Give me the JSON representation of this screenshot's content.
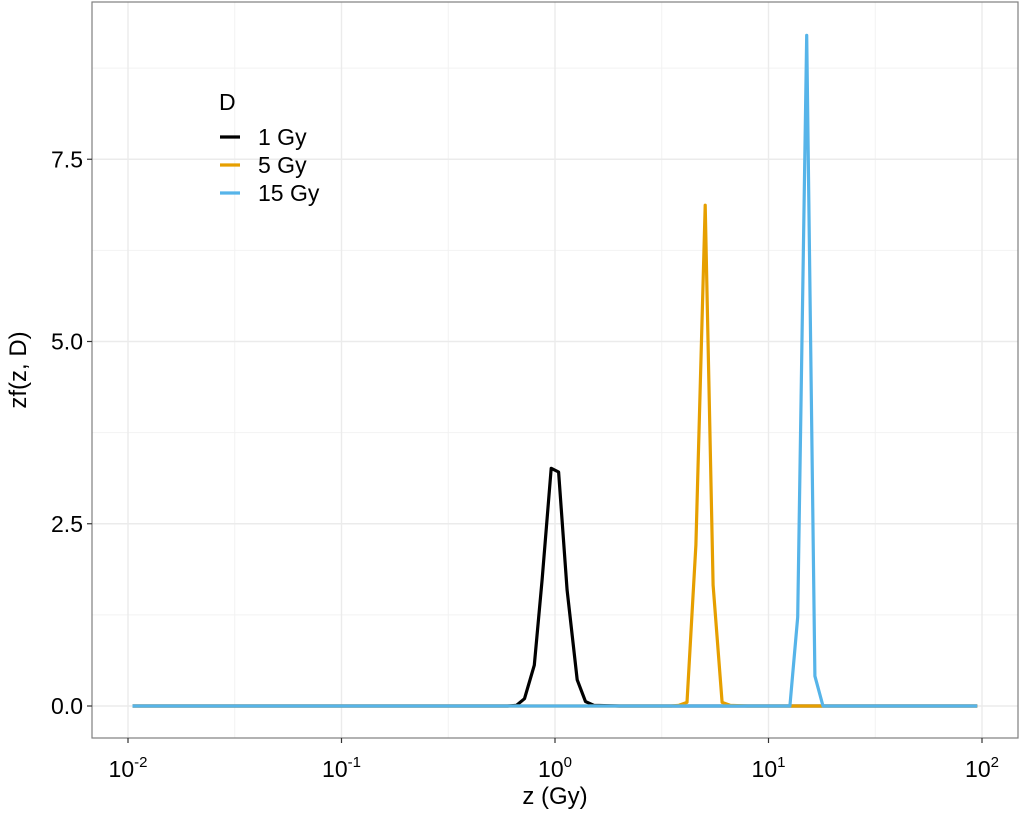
{
  "chart_data": {
    "type": "line",
    "title": "",
    "xlabel": "z (Gy)",
    "ylabel": "zf(z, D)",
    "x_scale": "log10",
    "xlim": [
      0.0085,
      130
    ],
    "ylim": [
      -0.45,
      9.62
    ],
    "grid": true,
    "x_ticks": [
      {
        "value": 0.01,
        "base": "10",
        "exp": "-2"
      },
      {
        "value": 0.1,
        "base": "10",
        "exp": "-1"
      },
      {
        "value": 1,
        "base": "10",
        "exp": "0"
      },
      {
        "value": 10,
        "base": "10",
        "exp": "1"
      },
      {
        "value": 100,
        "base": "10",
        "exp": "2"
      }
    ],
    "y_ticks": [
      {
        "value": 0.0,
        "label": "0.0"
      },
      {
        "value": 2.5,
        "label": "2.5"
      },
      {
        "value": 5.0,
        "label": "5.0"
      },
      {
        "value": 7.5,
        "label": "7.5"
      }
    ],
    "legend": {
      "title": "D",
      "position": "inside top-left"
    },
    "series": [
      {
        "name": "1 Gy",
        "color": "#000000",
        "x": [
          0.0105,
          0.6,
          0.66,
          0.72,
          0.8,
          0.87,
          0.96,
          1.04,
          1.14,
          1.27,
          1.39,
          1.52,
          2.0,
          95
        ],
        "y": [
          0,
          0,
          0.01,
          0.1,
          0.56,
          1.73,
          3.26,
          3.21,
          1.59,
          0.36,
          0.06,
          0.01,
          0,
          0
        ]
      },
      {
        "name": "5 Gy",
        "color": "#E69F00",
        "x": [
          0.0105,
          3.5,
          3.81,
          4.15,
          4.57,
          5.05,
          5.5,
          6.06,
          6.6,
          8.0,
          95
        ],
        "y": [
          0,
          0,
          0.01,
          0.05,
          2.21,
          6.87,
          1.66,
          0.05,
          0.01,
          0,
          0
        ]
      },
      {
        "name": "15 Gy",
        "color": "#56B4E9",
        "x": [
          0.0105,
          12.0,
          12.6,
          13.7,
          15.1,
          16.5,
          18.0,
          20.0,
          95
        ],
        "y": [
          0,
          0,
          0.0,
          1.22,
          9.2,
          0.41,
          0.0,
          0,
          0
        ]
      }
    ]
  }
}
